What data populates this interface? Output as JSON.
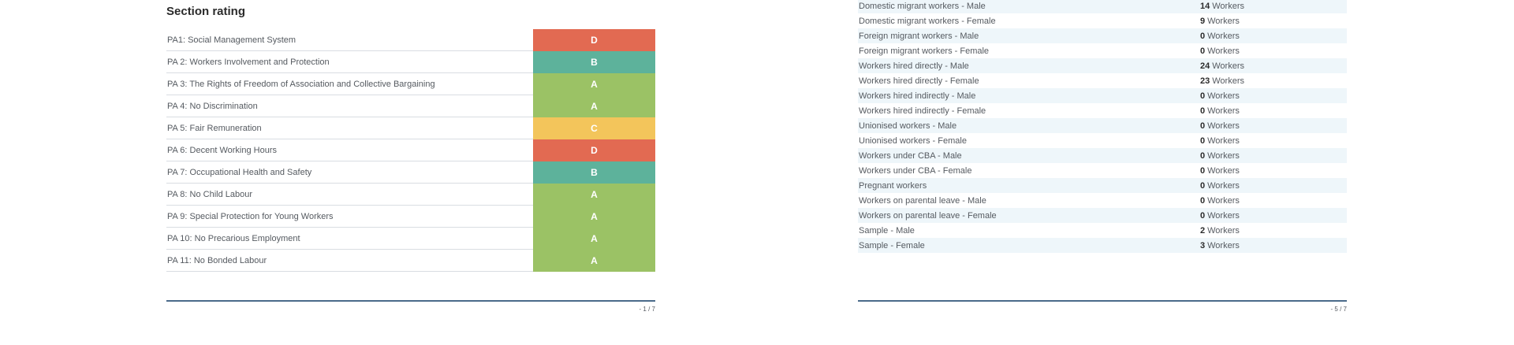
{
  "left_page": {
    "title": "Section rating",
    "page_number": "- 1 / 7",
    "ratings": [
      {
        "label": "PA1: Social Management System",
        "grade": "D",
        "color": "#e26a52"
      },
      {
        "label": "PA 2: Workers Involvement and Protection",
        "grade": "B",
        "color": "#5db29b"
      },
      {
        "label": "PA 3: The Rights of Freedom of Association and Collective Bargaining",
        "grade": "A",
        "color": "#9bc265"
      },
      {
        "label": "PA 4: No Discrimination",
        "grade": "A",
        "color": "#9bc265"
      },
      {
        "label": "PA 5: Fair Remuneration",
        "grade": "C",
        "color": "#f3c55b"
      },
      {
        "label": "PA 6: Decent Working Hours",
        "grade": "D",
        "color": "#e26a52"
      },
      {
        "label": "PA 7: Occupational Health and Safety",
        "grade": "B",
        "color": "#5db29b"
      },
      {
        "label": "PA 8: No Child Labour",
        "grade": "A",
        "color": "#9bc265"
      },
      {
        "label": "PA 9: Special Protection for Young Workers",
        "grade": "A",
        "color": "#9bc265"
      },
      {
        "label": "PA 10: No Precarious Employment",
        "grade": "A",
        "color": "#9bc265"
      },
      {
        "label": "PA 11: No Bonded Labour",
        "grade": "A",
        "color": "#9bc265"
      }
    ]
  },
  "right_page": {
    "page_number": "- 5 / 7",
    "unit": "Workers",
    "rows": [
      {
        "label": "Domestic migrant workers - Male",
        "count": "14"
      },
      {
        "label": "Domestic migrant workers - Female",
        "count": "9"
      },
      {
        "label": "Foreign migrant workers - Male",
        "count": "0"
      },
      {
        "label": "Foreign migrant workers - Female",
        "count": "0"
      },
      {
        "label": "Workers hired directly - Male",
        "count": "24"
      },
      {
        "label": "Workers hired directly - Female",
        "count": "23"
      },
      {
        "label": "Workers hired indirectly - Male",
        "count": "0"
      },
      {
        "label": "Workers hired indirectly - Female",
        "count": "0"
      },
      {
        "label": "Unionised workers - Male",
        "count": "0"
      },
      {
        "label": "Unionised workers - Female",
        "count": "0"
      },
      {
        "label": "Workers under CBA - Male",
        "count": "0"
      },
      {
        "label": "Workers under CBA - Female",
        "count": "0"
      },
      {
        "label": "Pregnant workers",
        "count": "0"
      },
      {
        "label": "Workers on parental leave - Male",
        "count": "0"
      },
      {
        "label": "Workers on parental leave - Female",
        "count": "0"
      },
      {
        "label": "Sample - Male",
        "count": "2"
      },
      {
        "label": "Sample - Female",
        "count": "3"
      }
    ]
  }
}
